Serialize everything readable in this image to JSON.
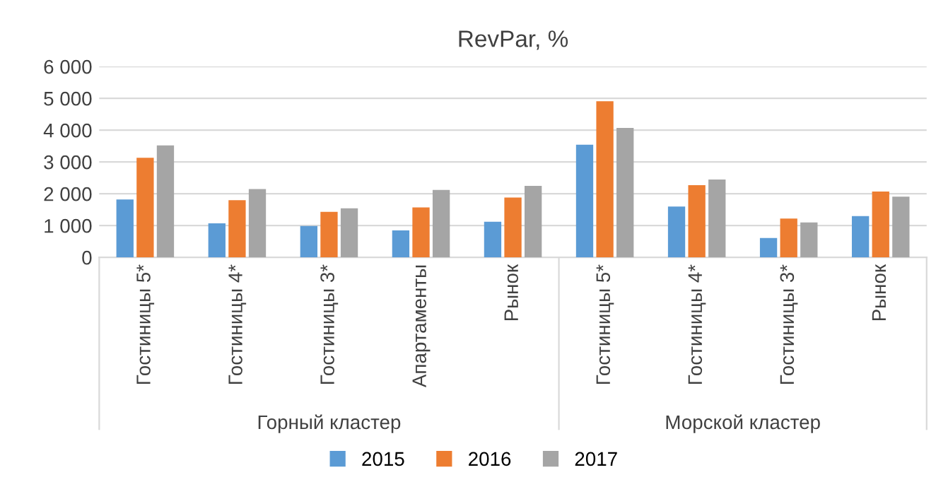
{
  "chart_data": {
    "type": "bar",
    "title": "RevPar, %",
    "categories": [
      "Гостиницы 5*",
      "Гостиницы 4*",
      "Гостиницы 3*",
      "Апартаменты",
      "Рынок",
      "Гостиницы 5*",
      "Гостиницы 4*",
      "Гостиницы 3*",
      "Рынок"
    ],
    "series": [
      {
        "name": "2015",
        "color": "#5b9bd5",
        "values": [
          1820,
          1070,
          990,
          850,
          1120,
          3540,
          1600,
          610,
          1300
        ]
      },
      {
        "name": "2016",
        "color": "#ed7d31",
        "values": [
          3130,
          1800,
          1430,
          1570,
          1880,
          4910,
          2270,
          1220,
          2070
        ]
      },
      {
        "name": "2017",
        "color": "#a5a5a5",
        "values": [
          3520,
          2150,
          1540,
          2120,
          2250,
          4070,
          2450,
          1100,
          1910
        ]
      }
    ],
    "annotations": [
      "Горный кластер",
      "Морской кластер"
    ],
    "ylim": [
      0,
      6000
    ],
    "yticks": [
      {
        "value": 0,
        "label": "0"
      },
      {
        "value": 1000,
        "label": "1 000"
      },
      {
        "value": 2000,
        "label": "2 000"
      },
      {
        "value": 3000,
        "label": "3 000"
      },
      {
        "value": 4000,
        "label": "4 000"
      },
      {
        "value": 5000,
        "label": "5 000"
      },
      {
        "value": 6000,
        "label": "6 000"
      }
    ],
    "grid": "y",
    "legend": "bottom"
  }
}
